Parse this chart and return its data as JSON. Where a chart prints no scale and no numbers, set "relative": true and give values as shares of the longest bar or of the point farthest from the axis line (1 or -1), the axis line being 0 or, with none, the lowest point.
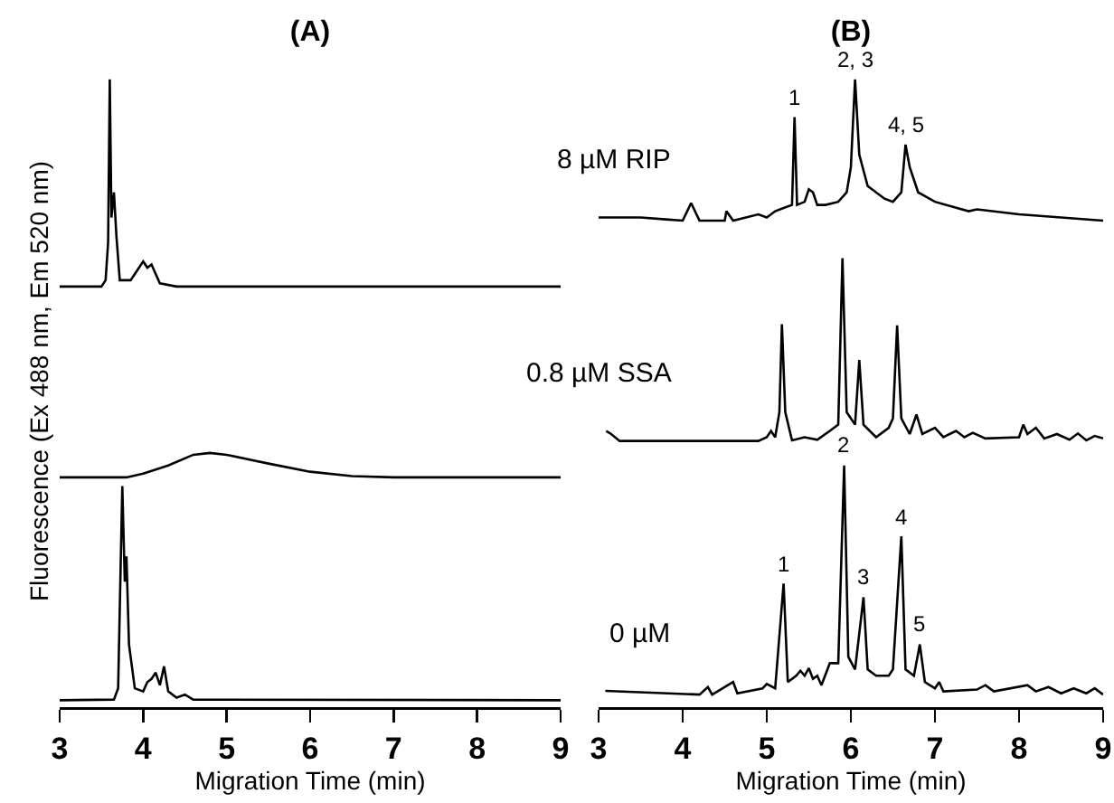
{
  "chart_data": [
    {
      "type": "line",
      "title": "(A)",
      "xlabel": "Migration Time (min)",
      "ylabel": "Fluorescence (Ex 488 nm, Em 520 nm)",
      "relative": true,
      "xlim": [
        3,
        9
      ],
      "xticks": [
        3,
        4,
        5,
        6,
        7,
        8,
        9
      ],
      "legend": false,
      "grid": false,
      "series": [
        {
          "color": "#000000",
          "x": [
            3.0,
            3.5,
            3.55,
            3.58,
            3.6,
            3.62,
            3.65,
            3.68,
            3.72,
            3.85,
            3.95,
            4.0,
            4.05,
            4.1,
            4.15,
            4.2,
            4.4,
            9.0
          ],
          "values": [
            0.67,
            0.67,
            0.68,
            0.74,
            1.0,
            0.78,
            0.82,
            0.75,
            0.68,
            0.68,
            0.7,
            0.71,
            0.7,
            0.705,
            0.69,
            0.675,
            0.67,
            0.67
          ]
        },
        {
          "color": "#000000",
          "x": [
            3.0,
            3.8,
            4.0,
            4.3,
            4.6,
            4.8,
            5.0,
            5.5,
            6.0,
            6.5,
            7.0,
            9.0
          ],
          "values": [
            0.366,
            0.366,
            0.372,
            0.385,
            0.402,
            0.405,
            0.402,
            0.388,
            0.375,
            0.368,
            0.366,
            0.366
          ]
        },
        {
          "color": "#000000",
          "x": [
            3.0,
            3.65,
            3.7,
            3.75,
            3.78,
            3.8,
            3.83,
            3.9,
            4.0,
            4.05,
            4.1,
            4.15,
            4.2,
            4.25,
            4.3,
            4.4,
            4.5,
            4.6,
            9.0
          ],
          "values": [
            0.011,
            0.012,
            0.03,
            0.352,
            0.2,
            0.24,
            0.1,
            0.03,
            0.025,
            0.04,
            0.045,
            0.055,
            0.035,
            0.065,
            0.025,
            0.015,
            0.02,
            0.012,
            0.011
          ]
        }
      ]
    },
    {
      "type": "line",
      "title": "(B)",
      "xlabel": "Migration Time (min)",
      "relative": true,
      "xlim": [
        3,
        9
      ],
      "xticks": [
        3,
        4,
        5,
        6,
        7,
        8,
        9
      ],
      "legend": false,
      "grid": false,
      "annotations": [
        {
          "text": "1",
          "x": 5.33,
          "y": 0.94
        },
        {
          "text": "2, 3",
          "x": 6.05,
          "y": 1.0
        },
        {
          "text": "4, 5",
          "x": 6.65,
          "y": 0.896
        },
        {
          "text": "1",
          "x": 5.2,
          "y": 0.197
        },
        {
          "text": "2",
          "x": 5.92,
          "y": 0.385
        },
        {
          "text": "3",
          "x": 6.15,
          "y": 0.175
        },
        {
          "text": "4",
          "x": 6.6,
          "y": 0.272
        },
        {
          "text": "5",
          "x": 6.82,
          "y": 0.1
        }
      ],
      "series": [
        {
          "name": "8 µM RIP",
          "color": "#000000",
          "x": [
            3.0,
            3.5,
            3.8,
            4.0,
            4.1,
            4.2,
            4.5,
            4.52,
            4.6,
            4.9,
            5.0,
            5.1,
            5.2,
            5.3,
            5.33,
            5.36,
            5.45,
            5.5,
            5.55,
            5.6,
            5.7,
            5.85,
            5.95,
            6.0,
            6.05,
            6.1,
            6.2,
            6.4,
            6.5,
            6.6,
            6.65,
            6.7,
            6.8,
            7.0,
            7.4,
            7.5,
            8.0,
            8.5,
            9.0
          ],
          "values": [
            0.78,
            0.78,
            0.777,
            0.775,
            0.803,
            0.775,
            0.775,
            0.79,
            0.775,
            0.785,
            0.78,
            0.79,
            0.795,
            0.8,
            0.94,
            0.8,
            0.805,
            0.825,
            0.82,
            0.8,
            0.8,
            0.805,
            0.82,
            0.86,
            1.0,
            0.88,
            0.83,
            0.81,
            0.805,
            0.82,
            0.896,
            0.86,
            0.82,
            0.805,
            0.79,
            0.793,
            0.785,
            0.78,
            0.775
          ]
        },
        {
          "name": "0.8 µM SSA",
          "color": "#000000",
          "x": [
            3.09,
            3.15,
            3.25,
            4.9,
            5.0,
            5.05,
            5.1,
            5.15,
            5.18,
            5.22,
            5.3,
            5.45,
            5.6,
            5.75,
            5.85,
            5.9,
            5.95,
            6.05,
            6.1,
            6.15,
            6.3,
            6.45,
            6.5,
            6.55,
            6.6,
            6.7,
            6.78,
            6.85,
            7.0,
            7.1,
            7.25,
            7.35,
            7.45,
            7.6,
            8.0,
            8.05,
            8.1,
            8.2,
            8.3,
            8.45,
            8.6,
            8.7,
            8.8,
            8.9,
            9.0
          ],
          "values": [
            0.44,
            0.435,
            0.424,
            0.424,
            0.43,
            0.44,
            0.43,
            0.47,
            0.61,
            0.47,
            0.425,
            0.43,
            0.426,
            0.44,
            0.45,
            0.715,
            0.47,
            0.45,
            0.553,
            0.45,
            0.43,
            0.445,
            0.46,
            0.608,
            0.46,
            0.435,
            0.466,
            0.435,
            0.445,
            0.43,
            0.44,
            0.43,
            0.437,
            0.428,
            0.43,
            0.45,
            0.435,
            0.445,
            0.428,
            0.435,
            0.426,
            0.436,
            0.425,
            0.432,
            0.428
          ]
        },
        {
          "name": "0 µM",
          "color": "#000000",
          "x": [
            3.08,
            4.2,
            4.3,
            4.35,
            4.6,
            4.65,
            4.95,
            5.0,
            5.1,
            5.2,
            5.25,
            5.35,
            5.4,
            5.45,
            5.5,
            5.55,
            5.6,
            5.65,
            5.75,
            5.85,
            5.92,
            5.97,
            6.05,
            6.15,
            6.2,
            6.3,
            6.45,
            6.5,
            6.6,
            6.65,
            6.75,
            6.82,
            6.88,
            7.0,
            7.05,
            7.1,
            7.5,
            7.6,
            7.7,
            8.1,
            8.2,
            8.35,
            8.5,
            8.65,
            8.8,
            8.9,
            9.0
          ],
          "values": [
            0.026,
            0.02,
            0.032,
            0.02,
            0.04,
            0.022,
            0.03,
            0.037,
            0.03,
            0.197,
            0.04,
            0.05,
            0.058,
            0.05,
            0.062,
            0.045,
            0.05,
            0.035,
            0.07,
            0.07,
            0.385,
            0.08,
            0.06,
            0.175,
            0.06,
            0.05,
            0.05,
            0.06,
            0.272,
            0.06,
            0.05,
            0.1,
            0.04,
            0.03,
            0.04,
            0.025,
            0.028,
            0.035,
            0.025,
            0.035,
            0.025,
            0.032,
            0.022,
            0.03,
            0.022,
            0.03,
            0.02
          ]
        }
      ]
    }
  ]
}
